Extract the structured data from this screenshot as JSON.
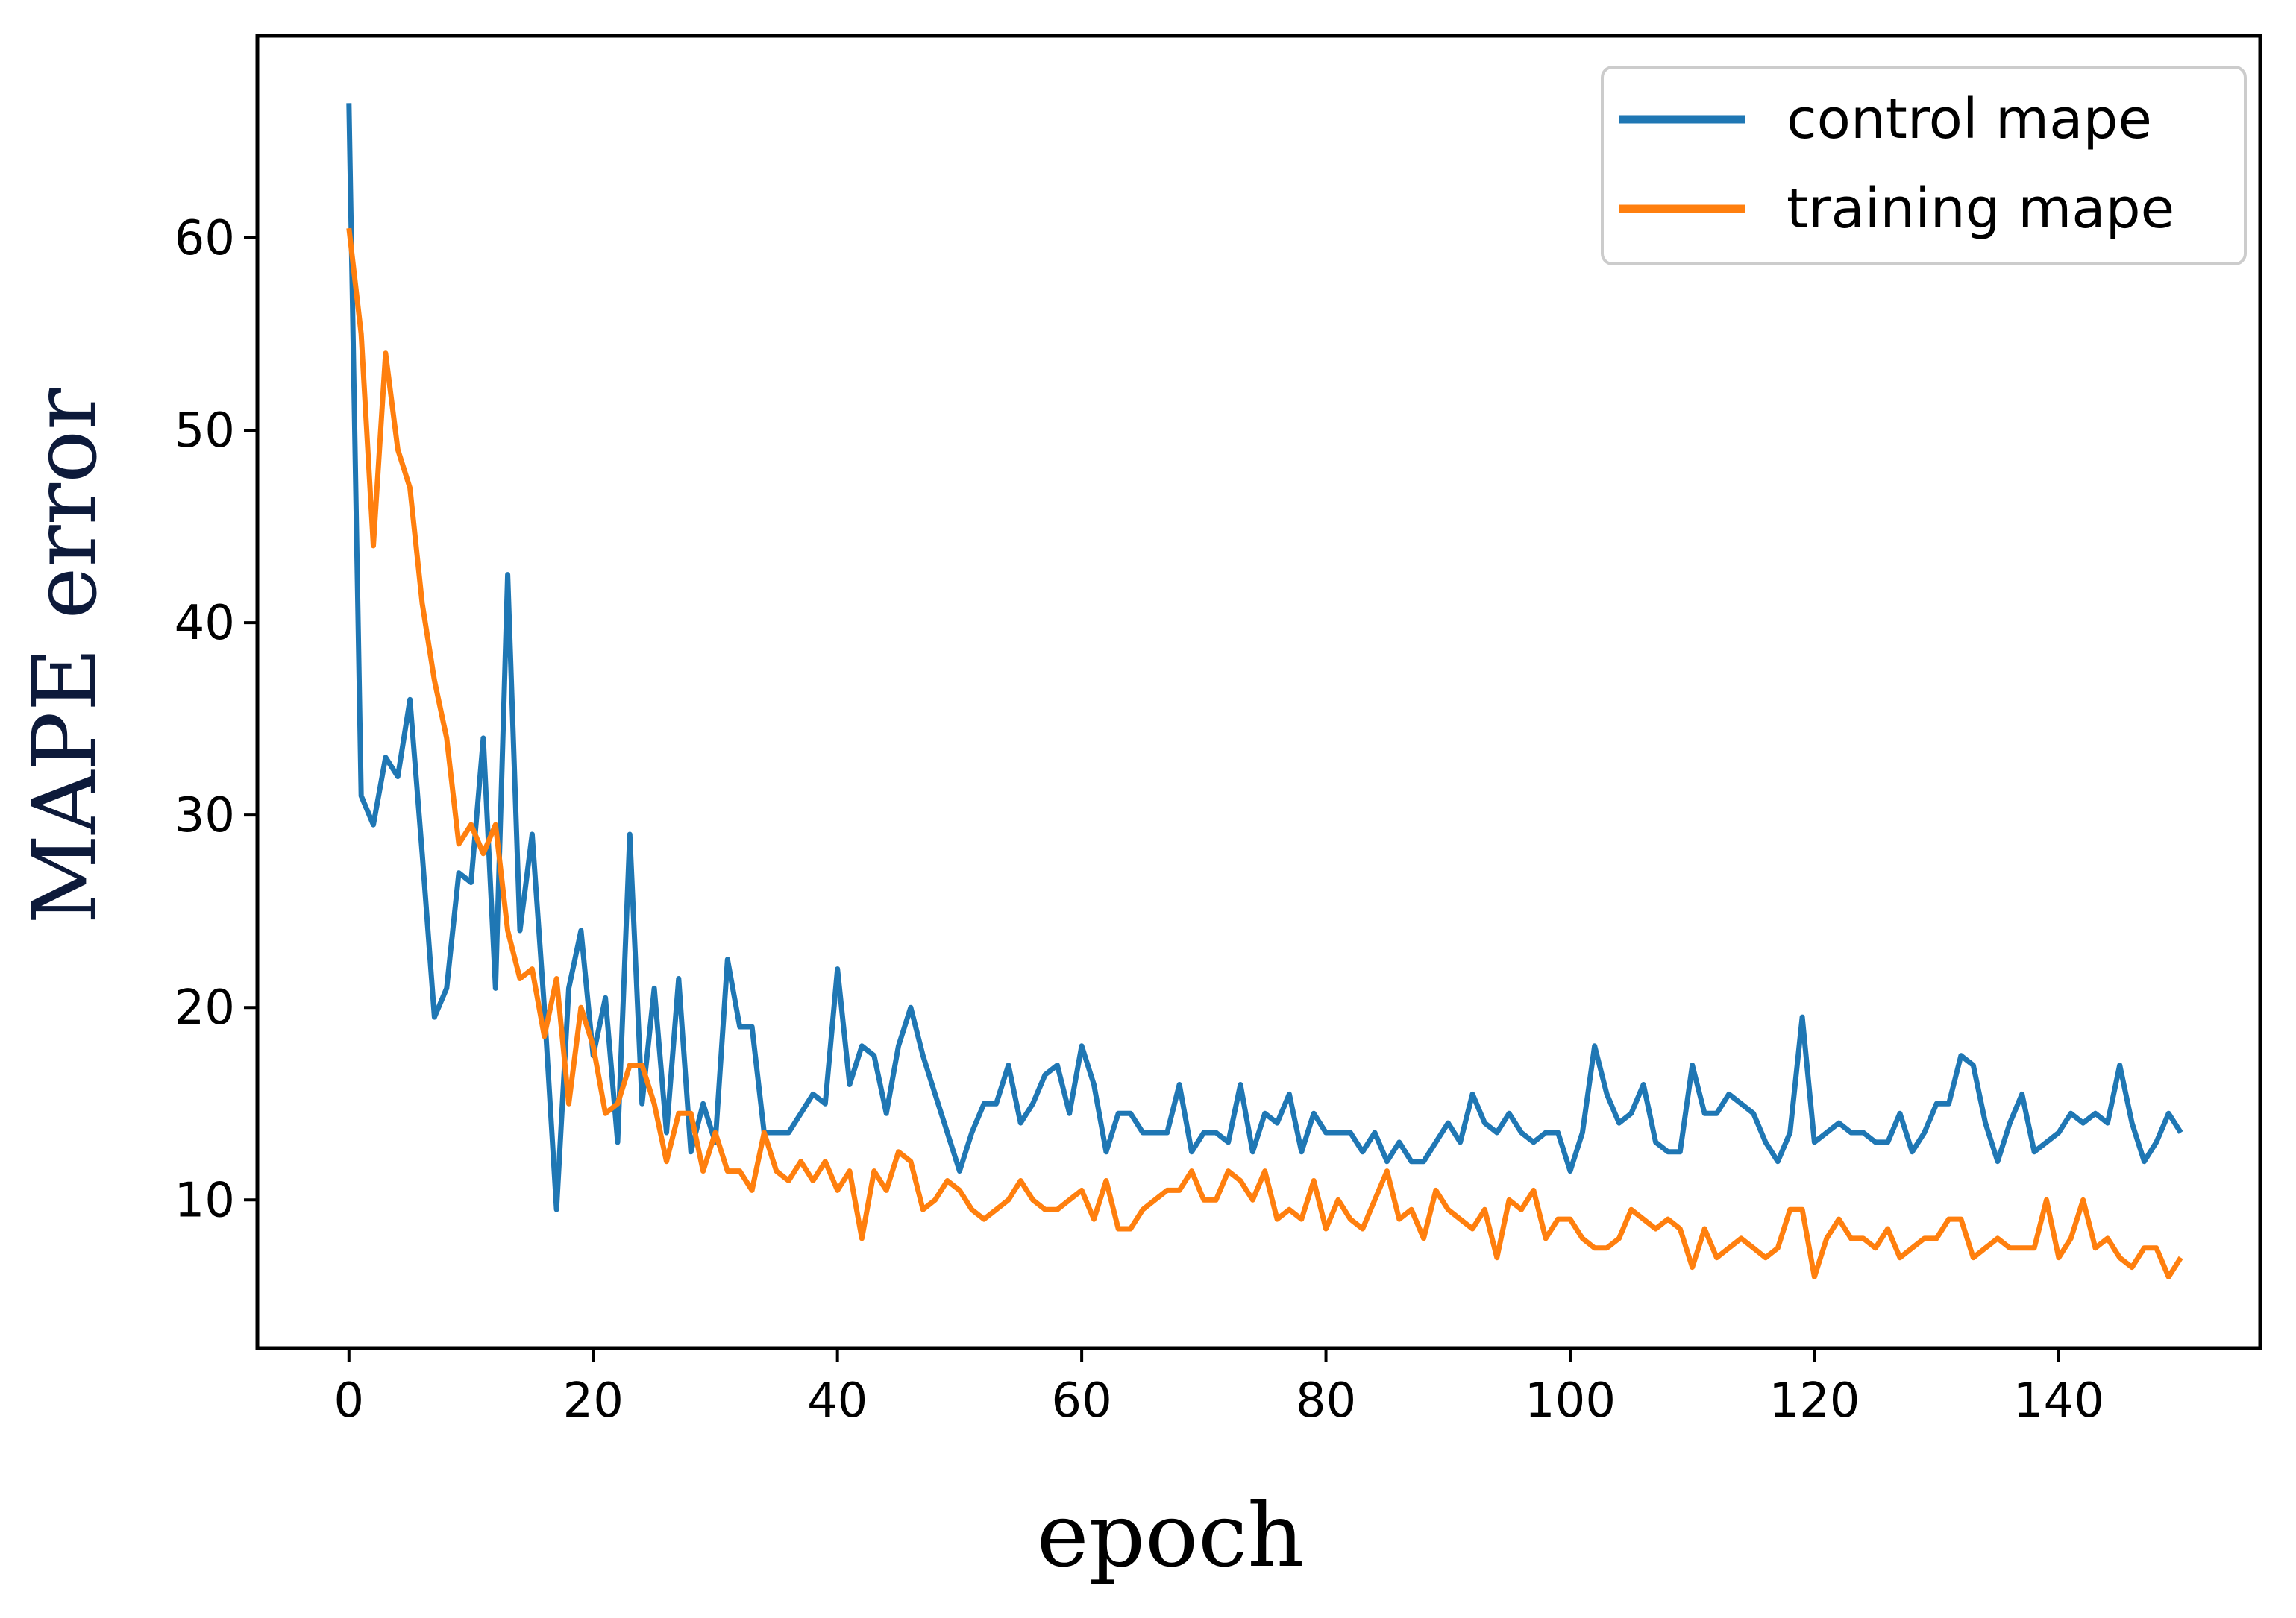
{
  "chart_data": {
    "type": "line",
    "title": "",
    "xlabel": "epoch",
    "ylabel": "MAPE error",
    "xlim": [
      -7.5,
      156.5
    ],
    "ylim": [
      2.3,
      70.5
    ],
    "xticks": [
      0,
      20,
      40,
      60,
      80,
      100,
      120,
      140
    ],
    "yticks": [
      10,
      20,
      30,
      40,
      50,
      60
    ],
    "grid": false,
    "legend_position": "top-right",
    "colors": {
      "control": "#1f77b4",
      "training": "#ff7f0e",
      "axes": "#000000"
    },
    "series": [
      {
        "name": "control mape",
        "color": "#1f77b4",
        "x_start": 0,
        "values": [
          67,
          31,
          29.5,
          33,
          32,
          36,
          28,
          19.5,
          21,
          27,
          26.5,
          34,
          21,
          42.5,
          24,
          29,
          20,
          9.5,
          21,
          24,
          17.5,
          20.5,
          13,
          29,
          15,
          21,
          13.5,
          21.5,
          12.5,
          15,
          13,
          22.5,
          19,
          19,
          13.5,
          13.5,
          13.5,
          14.5,
          15.5,
          15,
          22,
          16,
          18,
          17.5,
          14.5,
          18,
          20,
          17.5,
          15.5,
          13.5,
          11.5,
          13.5,
          15,
          15,
          17,
          14,
          15,
          16.5,
          17,
          14.5,
          18,
          16,
          12.5,
          14.5,
          14.5,
          13.5,
          13.5,
          13.5,
          16,
          12.5,
          13.5,
          13.5,
          13,
          16,
          12.5,
          14.5,
          14,
          15.5,
          12.5,
          14.5,
          13.5,
          13.5,
          13.5,
          12.5,
          13.5,
          12,
          13,
          12,
          12,
          13,
          14,
          13,
          15.5,
          14,
          13.5,
          14.5,
          13.5,
          13,
          13.5,
          13.5,
          11.5,
          13.5,
          18,
          15.5,
          14,
          14.5,
          16,
          13,
          12.5,
          12.5,
          17,
          14.5,
          14.5,
          15.5,
          15,
          14.5,
          13,
          12,
          13.5,
          19.5,
          13,
          13.5,
          14,
          13.5,
          13.5,
          13,
          13,
          14.5,
          12.5,
          13.5,
          15,
          15,
          17.5,
          17,
          14,
          12,
          14,
          15.5,
          12.5,
          13,
          13.5,
          14.5,
          14,
          14.5,
          14,
          17,
          14,
          12,
          13,
          14.5,
          13.5
        ]
      },
      {
        "name": "training mape",
        "color": "#ff7f0e",
        "x_start": 0,
        "values": [
          60.5,
          55,
          44,
          54,
          49,
          47,
          41,
          37,
          34,
          28.5,
          29.5,
          28,
          29.5,
          24,
          21.5,
          22,
          18.5,
          21.5,
          15,
          20,
          18,
          14.5,
          15,
          17,
          17,
          15,
          12,
          14.5,
          14.5,
          11.5,
          13.5,
          11.5,
          11.5,
          10.5,
          13.5,
          11.5,
          11,
          12,
          11,
          12,
          10.5,
          11.5,
          8,
          11.5,
          10.5,
          12.5,
          12,
          9.5,
          10,
          11,
          10.5,
          9.5,
          9,
          9.5,
          10,
          11,
          10,
          9.5,
          9.5,
          10,
          10.5,
          9,
          11,
          8.5,
          8.5,
          9.5,
          10,
          10.5,
          10.5,
          11.5,
          10,
          10,
          11.5,
          11,
          10,
          11.5,
          9,
          9.5,
          9,
          11,
          8.5,
          10,
          9,
          8.5,
          10,
          11.5,
          9,
          9.5,
          8,
          10.5,
          9.5,
          9,
          8.5,
          9.5,
          7,
          10,
          9.5,
          10.5,
          8,
          9,
          9,
          8,
          7.5,
          7.5,
          8,
          9.5,
          9,
          8.5,
          9,
          8.5,
          6.5,
          8.5,
          7,
          7.5,
          8,
          7.5,
          7,
          7.5,
          9.5,
          9.5,
          6,
          8,
          9,
          8,
          8,
          7.5,
          8.5,
          7,
          7.5,
          8,
          8,
          9,
          9,
          7,
          7.5,
          8,
          7.5,
          7.5,
          7.5,
          10,
          7,
          8,
          10,
          7.5,
          8,
          7,
          6.5,
          7.5,
          7.5,
          6,
          7
        ]
      }
    ]
  }
}
